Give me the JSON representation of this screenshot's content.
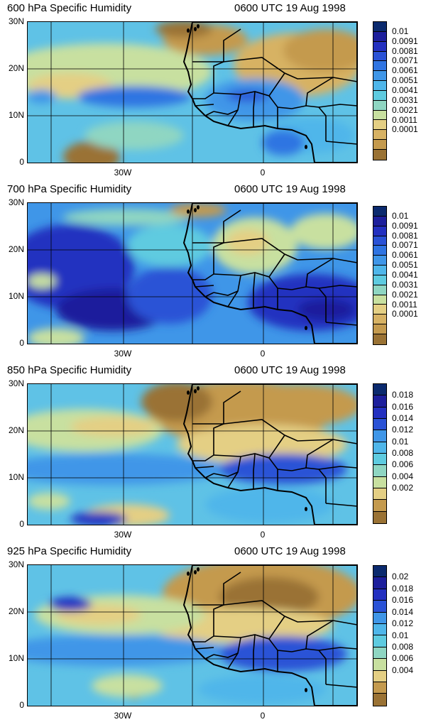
{
  "panels": [
    {
      "title": "600 hPa Specific Humidity",
      "time": "0600 UTC 19 Aug 1998",
      "yticks": [
        "30N",
        "20N",
        "10N",
        "0"
      ],
      "xticks": [
        "30W",
        "0"
      ],
      "colorbar": {
        "labels": [
          "0.01",
          "0.0091",
          "0.0081",
          "0.0071",
          "0.0061",
          "0.0051",
          "0.0041",
          "0.0031",
          "0.0021",
          "0.0011",
          "0.0001"
        ],
        "colors": [
          "#0b2a6e",
          "#1d1f9c",
          "#2330c0",
          "#2a52d6",
          "#2f74e2",
          "#3f96e8",
          "#4fb6ea",
          "#5ecbe0",
          "#8fd6c2",
          "#c8e0a0",
          "#e4cf84",
          "#d7b264",
          "#c49a4e",
          "#9a7234"
        ]
      }
    },
    {
      "title": "700 hPa Specific Humidity",
      "time": "0600 UTC 19 Aug 1998",
      "yticks": [
        "30N",
        "20N",
        "10N",
        "0"
      ],
      "xticks": [
        "30W",
        "0"
      ],
      "colorbar": {
        "labels": [
          "0.01",
          "0.0091",
          "0.0081",
          "0.0071",
          "0.0061",
          "0.0051",
          "0.0041",
          "0.0031",
          "0.0021",
          "0.0011",
          "0.0001"
        ],
        "colors": [
          "#0b2a6e",
          "#1d1f9c",
          "#2330c0",
          "#2a52d6",
          "#2f74e2",
          "#3f96e8",
          "#4fb6ea",
          "#5ecbe0",
          "#8fd6c2",
          "#c8e0a0",
          "#e4cf84",
          "#d7b264",
          "#c49a4e",
          "#9a7234"
        ]
      }
    },
    {
      "title": "850 hPa Specific Humidity",
      "time": "0600 UTC 19 Aug 1998",
      "yticks": [
        "30N",
        "20N",
        "10N",
        "0"
      ],
      "xticks": [
        "30W",
        "0"
      ],
      "colorbar": {
        "labels": [
          "0.018",
          "0.016",
          "0.014",
          "0.012",
          "0.01",
          "0.008",
          "0.006",
          "0.004",
          "0.002"
        ],
        "colors": [
          "#0b2a6e",
          "#1d1f9c",
          "#2330c0",
          "#2a52d6",
          "#3f96e8",
          "#4fb6ea",
          "#5ecbe0",
          "#8fd6c2",
          "#c8e0a0",
          "#e4cf84",
          "#c49a4e",
          "#9a7234"
        ]
      }
    },
    {
      "title": "925 hPa Specific Humidity",
      "time": "0600 UTC 19 Aug 1998",
      "yticks": [
        "30N",
        "20N",
        "10N",
        "0"
      ],
      "xticks": [
        "30W",
        "0"
      ],
      "colorbar": {
        "labels": [
          "0.02",
          "0.018",
          "0.016",
          "0.014",
          "0.012",
          "0.01",
          "0.008",
          "0.006",
          "0.004"
        ],
        "colors": [
          "#0b2a6e",
          "#1d1f9c",
          "#2330c0",
          "#2a52d6",
          "#3f96e8",
          "#4fb6ea",
          "#5ecbe0",
          "#8fd6c2",
          "#c8e0a0",
          "#e4cf84",
          "#c49a4e",
          "#9a7234"
        ]
      }
    }
  ]
}
